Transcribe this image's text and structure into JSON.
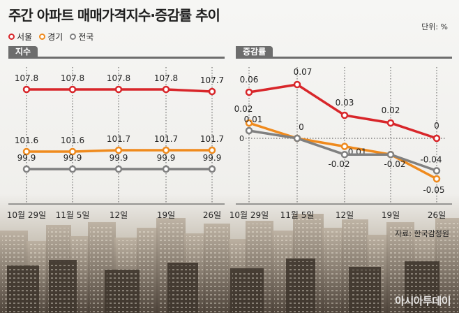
{
  "title": "주간 아파트 매매가격지수·증감률 추이",
  "unit": "단위: %",
  "legend": [
    {
      "name": "서울",
      "color": "#d8262a"
    },
    {
      "name": "경기",
      "color": "#ef8a1d"
    },
    {
      "name": "전국",
      "color": "#808080"
    }
  ],
  "panels": {
    "left": "지수",
    "right": "증감률"
  },
  "source": "자료: 한국감정원",
  "logo": "아시아투데이",
  "chart_data": [
    {
      "type": "line",
      "title": "지수",
      "categories": [
        "10월 29일",
        "11월 5일",
        "12일",
        "19일",
        "26일"
      ],
      "series": [
        {
          "name": "서울",
          "values": [
            107.8,
            107.8,
            107.8,
            107.8,
            107.7
          ],
          "labels": [
            "107.8",
            "107.8",
            "107.8",
            "107.8",
            "107.7"
          ],
          "color": "#d8262a"
        },
        {
          "name": "경기",
          "values": [
            101.6,
            101.6,
            101.7,
            101.7,
            101.7
          ],
          "labels": [
            "101.6",
            "101.6",
            "101.7",
            "101.7",
            "101.7"
          ],
          "color": "#ef8a1d"
        },
        {
          "name": "전국",
          "values": [
            99.9,
            99.9,
            99.9,
            99.9,
            99.9
          ],
          "labels": [
            "99.9",
            "99.9",
            "99.9",
            "99.9",
            "99.9"
          ],
          "color": "#808080"
        }
      ]
    },
    {
      "type": "line",
      "title": "증감률",
      "categories": [
        "10월 29일",
        "11월 5일",
        "12일",
        "19일",
        "26일"
      ],
      "ylim": [
        -0.07,
        0.09
      ],
      "zero_label": "0",
      "series": [
        {
          "name": "서울",
          "values": [
            0.06,
            0.07,
            0.03,
            0.02,
            0
          ],
          "labels": [
            "0.06",
            "0.07",
            "0.03",
            "0.02",
            "0"
          ],
          "color": "#d8262a"
        },
        {
          "name": "경기",
          "values": [
            0.02,
            0,
            -0.01,
            -0.02,
            -0.05
          ],
          "labels": [
            "0.02",
            "",
            "-0.01",
            "",
            "-0.05"
          ],
          "color": "#ef8a1d"
        },
        {
          "name": "전국",
          "values": [
            0.01,
            0,
            -0.02,
            -0.02,
            -0.04
          ],
          "labels": [
            "0.01",
            "0",
            "-0.02",
            "-0.02",
            "-0.04"
          ],
          "color": "#808080"
        }
      ]
    }
  ]
}
